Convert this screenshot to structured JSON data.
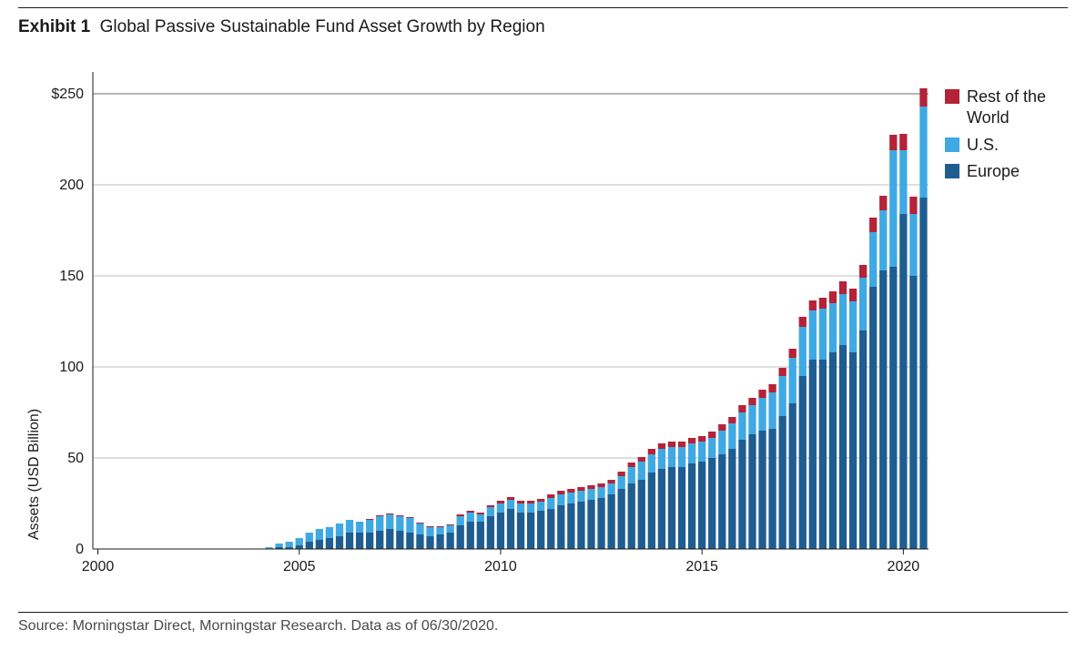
{
  "exhibit_label": "Exhibit 1",
  "exhibit_title": "Global Passive Sustainable Fund Asset Growth by Region",
  "source": "Source: Morningstar Direct, Morningstar Research. Data as of 06/30/2020.",
  "chart": {
    "type": "stacked-bar",
    "ylabel": "Assets (USD Billion)",
    "ylim": [
      0,
      260
    ],
    "ytick_values": [
      0,
      50,
      100,
      150,
      200,
      250
    ],
    "ytick_labels": [
      "0",
      "50",
      "100",
      "150",
      "200",
      "$250"
    ],
    "xtick_indices": [
      0,
      20,
      40,
      60,
      80
    ],
    "xtick_labels": [
      "2000",
      "2005",
      "2010",
      "2015",
      "2020"
    ],
    "axis_color": "#1a1a1a",
    "grid_color": "#bfbfbf",
    "top_grid_color": "#6e6e6e",
    "background_color": "#ffffff",
    "bar_gap_ratio": 0.25,
    "label_fontsize": 16,
    "tick_fontsize": 16,
    "series": [
      {
        "name": "Europe",
        "color": "#1f5d91"
      },
      {
        "name": "U.S.",
        "color": "#3fa9e3"
      },
      {
        "name": "Rest of the World",
        "color": "#b42337"
      }
    ],
    "legend_order": [
      "Rest of the World",
      "U.S.",
      "Europe"
    ],
    "data": [
      {
        "eu": 0,
        "us": 0,
        "row": 0
      },
      {
        "eu": 0,
        "us": 0,
        "row": 0
      },
      {
        "eu": 0,
        "us": 0,
        "row": 0
      },
      {
        "eu": 0,
        "us": 0,
        "row": 0
      },
      {
        "eu": 0,
        "us": 0,
        "row": 0
      },
      {
        "eu": 0,
        "us": 0,
        "row": 0
      },
      {
        "eu": 0,
        "us": 0,
        "row": 0
      },
      {
        "eu": 0,
        "us": 0,
        "row": 0
      },
      {
        "eu": 0,
        "us": 0,
        "row": 0
      },
      {
        "eu": 0,
        "us": 0,
        "row": 0
      },
      {
        "eu": 0,
        "us": 0,
        "row": 0
      },
      {
        "eu": 0,
        "us": 0,
        "row": 0
      },
      {
        "eu": 0,
        "us": 0,
        "row": 0
      },
      {
        "eu": 0,
        "us": 0,
        "row": 0
      },
      {
        "eu": 0,
        "us": 0,
        "row": 0
      },
      {
        "eu": 0,
        "us": 0,
        "row": 0
      },
      {
        "eu": 0,
        "us": 0,
        "row": 0
      },
      {
        "eu": 0,
        "us": 1,
        "row": 0
      },
      {
        "eu": 1,
        "us": 2,
        "row": 0
      },
      {
        "eu": 1,
        "us": 3,
        "row": 0
      },
      {
        "eu": 2,
        "us": 4,
        "row": 0
      },
      {
        "eu": 4,
        "us": 5,
        "row": 0
      },
      {
        "eu": 5,
        "us": 6,
        "row": 0
      },
      {
        "eu": 6,
        "us": 6,
        "row": 0
      },
      {
        "eu": 7,
        "us": 7,
        "row": 0
      },
      {
        "eu": 9,
        "us": 7,
        "row": 0
      },
      {
        "eu": 9,
        "us": 6,
        "row": 0
      },
      {
        "eu": 9,
        "us": 7,
        "row": 0.5
      },
      {
        "eu": 10,
        "us": 8,
        "row": 0.5
      },
      {
        "eu": 11,
        "us": 8,
        "row": 0.5
      },
      {
        "eu": 10,
        "us": 8,
        "row": 0.5
      },
      {
        "eu": 9,
        "us": 8,
        "row": 0.5
      },
      {
        "eu": 8,
        "us": 6,
        "row": 0.5
      },
      {
        "eu": 7,
        "us": 5,
        "row": 0.5
      },
      {
        "eu": 8,
        "us": 4,
        "row": 0.5
      },
      {
        "eu": 9,
        "us": 4,
        "row": 0.5
      },
      {
        "eu": 13,
        "us": 5,
        "row": 1
      },
      {
        "eu": 15,
        "us": 5,
        "row": 1
      },
      {
        "eu": 15,
        "us": 4,
        "row": 1
      },
      {
        "eu": 18,
        "us": 5,
        "row": 1
      },
      {
        "eu": 20,
        "us": 5,
        "row": 1.5
      },
      {
        "eu": 22,
        "us": 5,
        "row": 1.5
      },
      {
        "eu": 20,
        "us": 5,
        "row": 1.5
      },
      {
        "eu": 20,
        "us": 5,
        "row": 1.5
      },
      {
        "eu": 21,
        "us": 5,
        "row": 1.5
      },
      {
        "eu": 22,
        "us": 6,
        "row": 2
      },
      {
        "eu": 24,
        "us": 6,
        "row": 2
      },
      {
        "eu": 25,
        "us": 6,
        "row": 2
      },
      {
        "eu": 26,
        "us": 6,
        "row": 2
      },
      {
        "eu": 27,
        "us": 6,
        "row": 2
      },
      {
        "eu": 28,
        "us": 6,
        "row": 2
      },
      {
        "eu": 30,
        "us": 6,
        "row": 2
      },
      {
        "eu": 33,
        "us": 7,
        "row": 2.5
      },
      {
        "eu": 36,
        "us": 9,
        "row": 2.5
      },
      {
        "eu": 38,
        "us": 10,
        "row": 2.5
      },
      {
        "eu": 42,
        "us": 10,
        "row": 3
      },
      {
        "eu": 44,
        "us": 11,
        "row": 3
      },
      {
        "eu": 45,
        "us": 11,
        "row": 3
      },
      {
        "eu": 45,
        "us": 11,
        "row": 3
      },
      {
        "eu": 47,
        "us": 11,
        "row": 3
      },
      {
        "eu": 48,
        "us": 11,
        "row": 3
      },
      {
        "eu": 50,
        "us": 11,
        "row": 3.5
      },
      {
        "eu": 52,
        "us": 13,
        "row": 3.5
      },
      {
        "eu": 55,
        "us": 14,
        "row": 3.5
      },
      {
        "eu": 60,
        "us": 15,
        "row": 4
      },
      {
        "eu": 63,
        "us": 16,
        "row": 4
      },
      {
        "eu": 65,
        "us": 18,
        "row": 4.5
      },
      {
        "eu": 66,
        "us": 20,
        "row": 4.5
      },
      {
        "eu": 73,
        "us": 22,
        "row": 4.5
      },
      {
        "eu": 80,
        "us": 25,
        "row": 5
      },
      {
        "eu": 95,
        "us": 27,
        "row": 5.5
      },
      {
        "eu": 104,
        "us": 27,
        "row": 5.5
      },
      {
        "eu": 104,
        "us": 28,
        "row": 6
      },
      {
        "eu": 108,
        "us": 27,
        "row": 6.5
      },
      {
        "eu": 112,
        "us": 28,
        "row": 7
      },
      {
        "eu": 108,
        "us": 28,
        "row": 7
      },
      {
        "eu": 120,
        "us": 29,
        "row": 7
      },
      {
        "eu": 144,
        "us": 30,
        "row": 8
      },
      {
        "eu": 153,
        "us": 33,
        "row": 8
      },
      {
        "eu": 155,
        "us": 64,
        "row": 8.5
      },
      {
        "eu": 184,
        "us": 35,
        "row": 9
      },
      {
        "eu": 150,
        "us": 34,
        "row": 9.5
      },
      {
        "eu": 193,
        "us": 50,
        "row": 10
      }
    ]
  }
}
